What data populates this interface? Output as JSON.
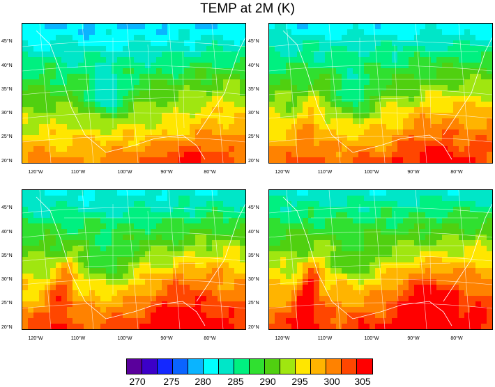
{
  "title": "TEMP at 2M (K)",
  "lat_labels": [
    "45°N",
    "40°N",
    "35°N",
    "30°N",
    "25°N",
    "20°N"
  ],
  "lon_labels": [
    "120°W",
    "110°W",
    "100°W",
    "90°W",
    "80°W"
  ],
  "colorbar": {
    "colors": [
      "#5a009c",
      "#3c00c8",
      "#1428ff",
      "#0a64ff",
      "#0ab4ff",
      "#00ffff",
      "#00e6c8",
      "#00f080",
      "#30e030",
      "#50d010",
      "#a0e610",
      "#ffe600",
      "#ffb400",
      "#ff8200",
      "#ff4600",
      "#ff0000"
    ],
    "labels": [
      "270",
      "275",
      "280",
      "285",
      "290",
      "295",
      "300",
      "305"
    ]
  },
  "panels": [
    "panel-1",
    "panel-2",
    "panel-3",
    "panel-4"
  ]
}
